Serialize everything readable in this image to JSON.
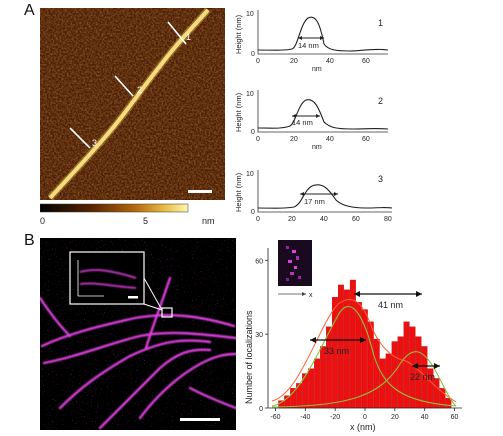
{
  "panelA": {
    "letter": "A",
    "colorbar": {
      "ticks": [
        "0",
        "5"
      ],
      "unit": "nm"
    },
    "markers": [
      "1",
      "2",
      "3"
    ],
    "profiles": [
      {
        "id": "1",
        "ylabel": "Height (nm)",
        "xlabel": "nm",
        "yticks": [
          "0",
          "10"
        ],
        "xticks": [
          "0",
          "20",
          "40",
          "60"
        ],
        "fwhm": "14 nm"
      },
      {
        "id": "2",
        "ylabel": "Height (nm)",
        "xlabel": "nm",
        "yticks": [
          "0",
          "10"
        ],
        "xticks": [
          "0",
          "20",
          "40",
          "60"
        ],
        "fwhm": "14 nm"
      },
      {
        "id": "3",
        "ylabel": "Height (nm)",
        "xlabel": "",
        "yticks": [
          "0",
          "10"
        ],
        "xticks": [
          "0",
          "20",
          "40",
          "60",
          "80"
        ],
        "fwhm": "17 nm"
      }
    ]
  },
  "panelB": {
    "letter": "B",
    "inset_axis": "x",
    "chart_data": {
      "type": "bar",
      "xlabel": "x (nm)",
      "ylabel": "Number of localizations",
      "xlim": [
        -65,
        65
      ],
      "ylim": [
        0,
        65
      ],
      "xticks": [
        -60,
        -40,
        -20,
        0,
        20,
        40,
        60
      ],
      "yticks": [
        0,
        30,
        60
      ],
      "bin_width": 4,
      "x": [
        -56,
        -52,
        -48,
        -44,
        -40,
        -36,
        -32,
        -28,
        -24,
        -20,
        -16,
        -12,
        -8,
        -4,
        0,
        4,
        8,
        12,
        16,
        20,
        24,
        28,
        32,
        36,
        40,
        44,
        48,
        52,
        56
      ],
      "values": [
        3,
        5,
        8,
        10,
        14,
        16,
        20,
        25,
        33,
        45,
        50,
        48,
        52,
        43,
        40,
        35,
        28,
        20,
        22,
        27,
        29,
        35,
        33,
        29,
        25,
        16,
        12,
        8,
        4
      ],
      "annotations": [
        {
          "text": "41 nm"
        },
        {
          "text": "33 nm"
        },
        {
          "text": "22 nm"
        }
      ]
    }
  }
}
